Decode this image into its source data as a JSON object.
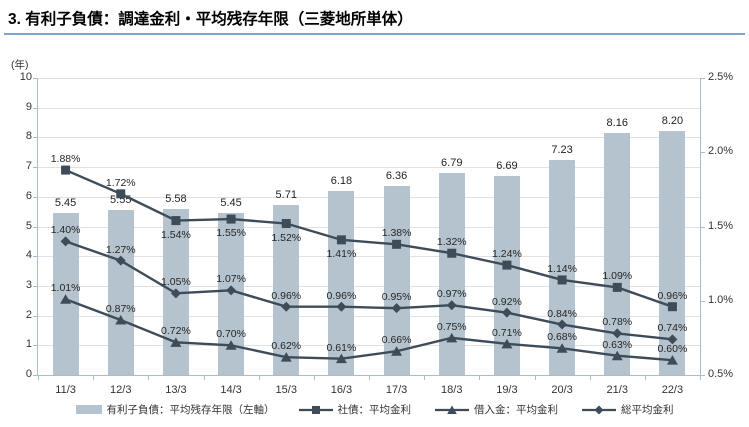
{
  "title": "3. 有利子負債：調達金利・平均残存年限（三菱地所単体）",
  "left_axis": {
    "unit_label": "(年)",
    "tick_values": [
      0,
      1,
      2,
      3,
      4,
      5,
      6,
      7,
      8,
      9,
      10
    ],
    "min": 0,
    "max": 10
  },
  "right_axis": {
    "tick_values": [
      0.5,
      1.0,
      1.5,
      2.0,
      2.5
    ],
    "tick_labels": [
      "0.5%",
      "1.0%",
      "1.5%",
      "2.0%",
      "2.5%"
    ],
    "min": 0.5,
    "max": 2.5
  },
  "chart_data": {
    "type": "combo-bar-line",
    "title": "3. 有利子負債：調達金利・平均残存年限（三菱地所単体）",
    "categories": [
      "11/3",
      "12/3",
      "13/3",
      "14/3",
      "15/3",
      "16/3",
      "17/3",
      "18/3",
      "19/3",
      "20/3",
      "21/3",
      "22/3"
    ],
    "left_axis_unit": "(年)",
    "ylim_left": [
      0,
      10
    ],
    "ylim_right_pct": [
      0.5,
      2.5
    ],
    "grid": true,
    "legend_position": "bottom",
    "series": [
      {
        "name": "有利子負債：平均残存年限（左軸）",
        "type": "bar",
        "axis": "left",
        "values": [
          5.45,
          5.55,
          5.58,
          5.45,
          5.71,
          6.18,
          6.36,
          6.79,
          6.69,
          7.23,
          8.16,
          8.2
        ],
        "labels": [
          "5.45",
          "5.55",
          "5.58",
          "5.45",
          "5.71",
          "6.18",
          "6.36",
          "6.79",
          "6.69",
          "7.23",
          "8.16",
          "8.20"
        ]
      },
      {
        "name": "社債：平均金利",
        "type": "line",
        "marker": "square",
        "axis": "right",
        "values": [
          1.88,
          1.72,
          1.54,
          1.55,
          1.52,
          1.41,
          1.38,
          1.32,
          1.24,
          1.14,
          1.09,
          0.96
        ],
        "labels": [
          "1.88%",
          "1.72%",
          "1.54%",
          "1.55%",
          "1.52%",
          "1.41%",
          "1.38%",
          "1.32%",
          "1.24%",
          "1.14%",
          "1.09%",
          "0.96%"
        ],
        "label_positions": [
          "above",
          "above",
          "below",
          "below",
          "below",
          "below",
          "above",
          "above",
          "above",
          "above",
          "above",
          "above"
        ]
      },
      {
        "name": "借入金：平均金利",
        "type": "line",
        "marker": "triangle",
        "axis": "right",
        "values": [
          1.01,
          0.87,
          0.72,
          0.7,
          0.62,
          0.61,
          0.66,
          0.75,
          0.71,
          0.68,
          0.63,
          0.6
        ],
        "labels": [
          "1.01%",
          "0.87%",
          "0.72%",
          "0.70%",
          "0.62%",
          "0.61%",
          "0.66%",
          "0.75%",
          "0.71%",
          "0.68%",
          "0.63%",
          "0.60%"
        ],
        "label_positions": [
          "above",
          "above",
          "above",
          "above",
          "above",
          "above",
          "above",
          "above",
          "above",
          "above",
          "above",
          "above"
        ]
      },
      {
        "name": "総平均金利",
        "type": "line",
        "marker": "diamond",
        "axis": "right",
        "values": [
          1.4,
          1.27,
          1.05,
          1.07,
          0.96,
          0.96,
          0.95,
          0.97,
          0.92,
          0.84,
          0.78,
          0.74
        ],
        "labels": [
          "1.40%",
          "1.27%",
          "1.05%",
          "1.07%",
          "0.96%",
          "0.96%",
          "0.95%",
          "0.97%",
          "0.92%",
          "0.84%",
          "0.78%",
          "0.74%"
        ],
        "label_positions": [
          "above",
          "above",
          "above",
          "above",
          "above",
          "above",
          "above",
          "above",
          "above",
          "above",
          "above",
          "above"
        ]
      }
    ]
  },
  "legend": {
    "items": [
      {
        "label": "有利子負債：平均残存年限（左軸）",
        "marker": "bar"
      },
      {
        "label": "社債：平均金利",
        "marker": "square"
      },
      {
        "label": "借入金：平均金利",
        "marker": "triangle"
      },
      {
        "label": "総平均金利",
        "marker": "diamond"
      }
    ]
  },
  "colors": {
    "bar": "#b4c3cd",
    "line": "#3e4c5a",
    "grid": "#dde2e7",
    "axis": "#a9bcc9",
    "title_underline": "#7ba6c6",
    "label_text": "#262626"
  }
}
